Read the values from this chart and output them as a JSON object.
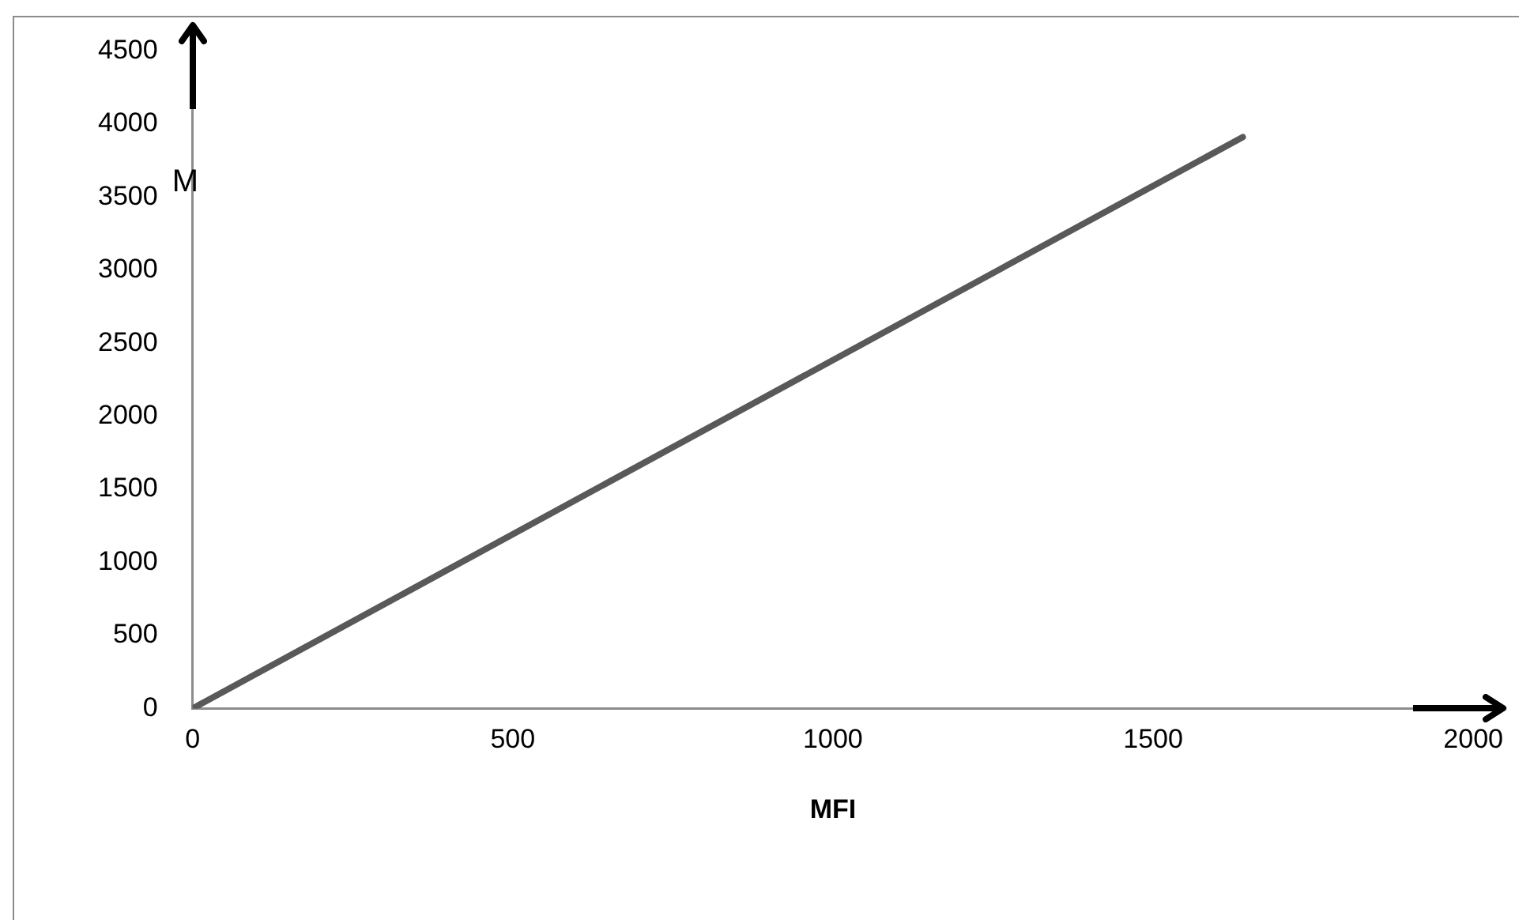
{
  "chart_data": {
    "type": "line",
    "xlabel": "MFI",
    "ylabel": "M",
    "x": [
      0,
      1640
    ],
    "series": [
      {
        "color": "#595959",
        "values": [
          0,
          3910
        ]
      }
    ],
    "xlim": [
      0,
      2000
    ],
    "xticks": [
      0,
      500,
      1000,
      1500,
      2000
    ],
    "ylim": [
      0,
      4500
    ],
    "yticks": [
      0,
      500,
      1000,
      1500,
      2000,
      2500,
      3000,
      3500,
      4000,
      4500
    ],
    "grid": false,
    "legend": false,
    "marker": "none",
    "line_style": "solid"
  }
}
